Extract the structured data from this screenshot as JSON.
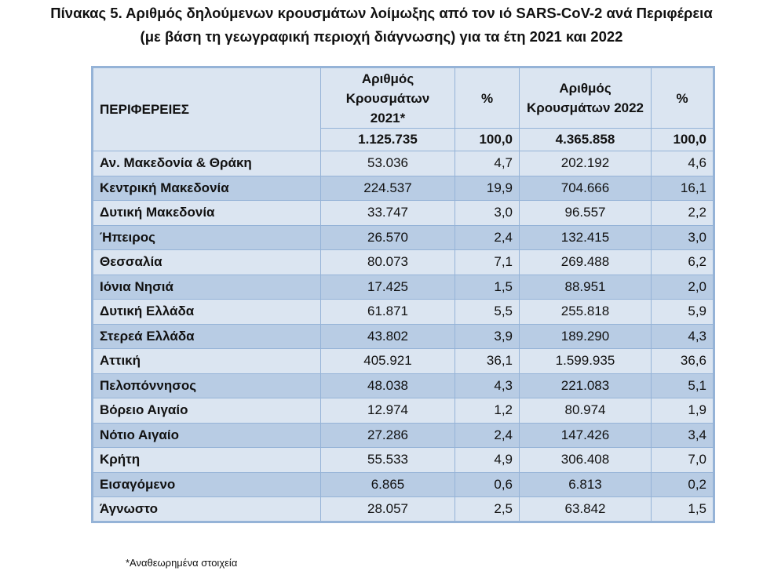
{
  "title": {
    "line1": "Πίνακας 5. Αριθμός δηλούμενων κρουσμάτων λοίμωξης από τον ιό SARS-CoV-2 ανά Περιφέρεια",
    "line2": "(με βάση τη γεωγραφική περιοχή διάγνωσης) για τα έτη 2021 και 2022"
  },
  "headers": {
    "region": "ΠΕΡΙΦΕΡΕΙΕΣ",
    "cases2021": "Αριθμός Κρουσμάτων 2021*",
    "pct1": "%",
    "cases2022": "Αριθμός Κρουσμάτων 2022",
    "pct2": "%"
  },
  "totals": {
    "cases2021": "1.125.735",
    "pct1": "100,0",
    "cases2022": "4.365.858",
    "pct2": "100,0"
  },
  "rows": [
    {
      "region": "Αν. Μακεδονία & Θράκη",
      "c21": "53.036",
      "p21": "4,7",
      "c22": "202.192",
      "p22": "4,6"
    },
    {
      "region": "Κεντρική Μακεδονία",
      "c21": "224.537",
      "p21": "19,9",
      "c22": "704.666",
      "p22": "16,1"
    },
    {
      "region": "Δυτική Μακεδονία",
      "c21": "33.747",
      "p21": "3,0",
      "c22": "96.557",
      "p22": "2,2"
    },
    {
      "region": "Ήπειρος",
      "c21": "26.570",
      "p21": "2,4",
      "c22": "132.415",
      "p22": "3,0"
    },
    {
      "region": "Θεσσαλία",
      "c21": "80.073",
      "p21": "7,1",
      "c22": "269.488",
      "p22": "6,2"
    },
    {
      "region": "Ιόνια Νησιά",
      "c21": "17.425",
      "p21": "1,5",
      "c22": "88.951",
      "p22": "2,0"
    },
    {
      "region": "Δυτική Ελλάδα",
      "c21": "61.871",
      "p21": "5,5",
      "c22": "255.818",
      "p22": "5,9"
    },
    {
      "region": "Στερεά Ελλάδα",
      "c21": "43.802",
      "p21": "3,9",
      "c22": "189.290",
      "p22": "4,3"
    },
    {
      "region": "Αττική",
      "c21": "405.921",
      "p21": "36,1",
      "c22": "1.599.935",
      "p22": "36,6"
    },
    {
      "region": "Πελοπόννησος",
      "c21": "48.038",
      "p21": "4,3",
      "c22": "221.083",
      "p22": "5,1"
    },
    {
      "region": "Βόρειο Αιγαίο",
      "c21": "12.974",
      "p21": "1,2",
      "c22": "80.974",
      "p22": "1,9"
    },
    {
      "region": "Νότιο Αιγαίο",
      "c21": "27.286",
      "p21": "2,4",
      "c22": "147.426",
      "p22": "3,4"
    },
    {
      "region": "Κρήτη",
      "c21": "55.533",
      "p21": "4,9",
      "c22": "306.408",
      "p22": "7,0"
    },
    {
      "region": "Εισαγόμενο",
      "c21": "6.865",
      "p21": "0,6",
      "c22": "6.813",
      "p22": "0,2"
    },
    {
      "region": "Άγνωστο",
      "c21": "28.057",
      "p21": "2,5",
      "c22": "63.842",
      "p22": "1,5"
    }
  ],
  "footnote": "*Αναθεωρημένα στοιχεία"
}
